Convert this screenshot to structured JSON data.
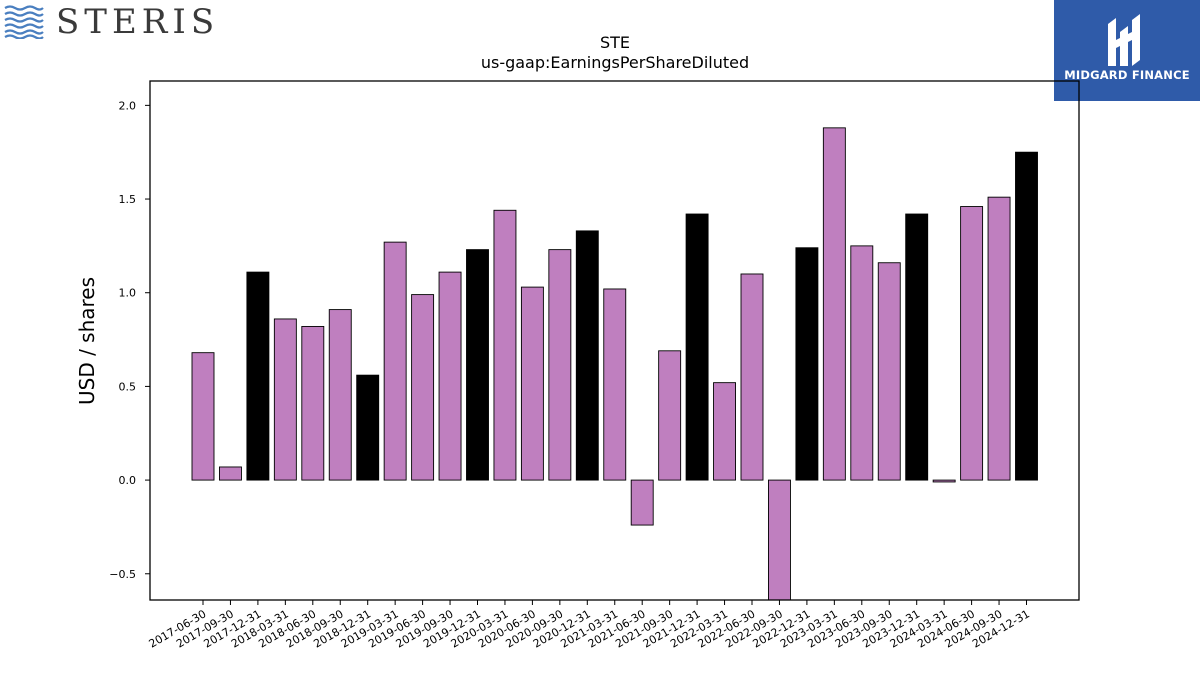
{
  "logos": {
    "left_text": "STERIS",
    "right_text": "MIDGARD FINANCE"
  },
  "colors": {
    "bar_default": "#bf7fbf",
    "bar_q4": "#000000",
    "logo_right_bg": "#2f5ba9",
    "logo_left_waves": "#4a7fc0"
  },
  "chart_data": {
    "type": "bar",
    "title": "STE",
    "subtitle": "us-gaap:EarningsPerShareDiluted",
    "xlabel": "",
    "ylabel": "USD / shares",
    "ylim": [
      -0.64,
      2.13
    ],
    "yticks": [
      -0.5,
      0.0,
      0.5,
      1.0,
      1.5,
      2.0
    ],
    "ytick_labels": [
      "−0.5",
      "0.0",
      "0.5",
      "1.0",
      "1.5",
      "2.0"
    ],
    "grid": false,
    "categories": [
      "2017-06-30",
      "2017-09-30",
      "2017-12-31",
      "2018-03-31",
      "2018-06-30",
      "2018-09-30",
      "2018-12-31",
      "2019-03-31",
      "2019-06-30",
      "2019-09-30",
      "2019-12-31",
      "2020-03-31",
      "2020-06-30",
      "2020-09-30",
      "2020-12-31",
      "2021-03-31",
      "2021-06-30",
      "2021-09-30",
      "2021-12-31",
      "2022-03-31",
      "2022-06-30",
      "2022-09-30",
      "2022-12-31",
      "2023-03-31",
      "2023-06-30",
      "2023-09-30",
      "2023-12-31",
      "2024-03-31",
      "2024-06-30",
      "2024-09-30",
      "2024-12-31"
    ],
    "values": [
      0.68,
      0.07,
      1.11,
      0.86,
      0.82,
      0.91,
      0.56,
      1.27,
      0.99,
      1.11,
      1.23,
      1.44,
      1.03,
      1.23,
      1.33,
      1.02,
      -0.24,
      0.69,
      1.42,
      0.52,
      1.1,
      -0.64,
      1.24,
      1.88,
      1.25,
      1.16,
      1.42,
      -0.01,
      1.46,
      1.51,
      1.75
    ],
    "highlight": [
      false,
      false,
      true,
      false,
      false,
      false,
      true,
      false,
      false,
      false,
      true,
      false,
      false,
      false,
      true,
      false,
      false,
      false,
      true,
      false,
      false,
      false,
      true,
      false,
      false,
      false,
      true,
      false,
      false,
      false,
      true
    ]
  }
}
